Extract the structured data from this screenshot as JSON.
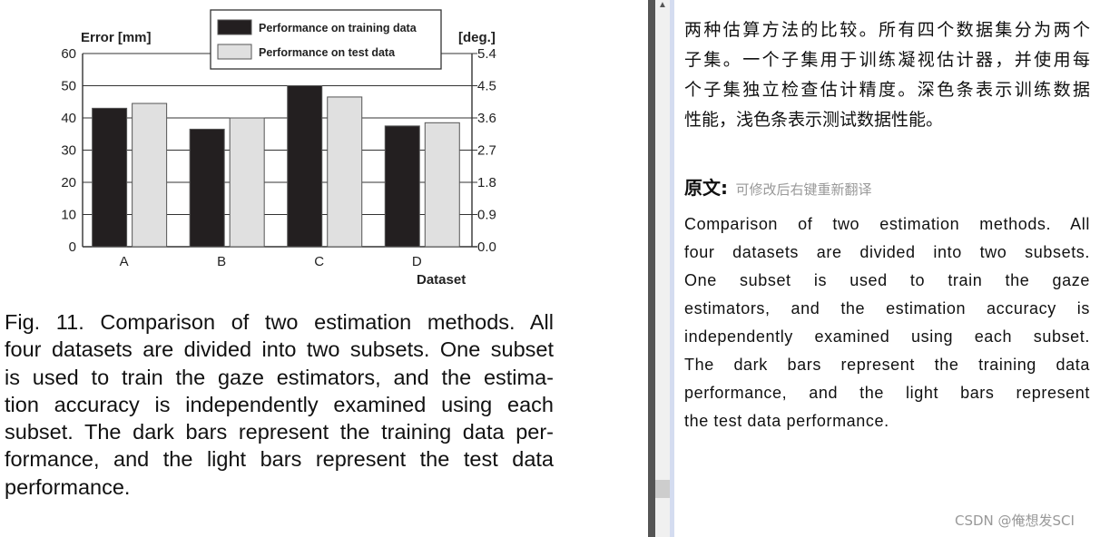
{
  "chart_data": {
    "type": "bar",
    "categories": [
      "A",
      "B",
      "C",
      "D"
    ],
    "series": [
      {
        "name": "Performance on training data",
        "values": [
          43,
          36.5,
          50,
          37.5
        ],
        "color": "#231f20"
      },
      {
        "name": "Performance on test data",
        "values": [
          44.5,
          40,
          46.5,
          38.5
        ],
        "color": "#e0e0e0"
      }
    ],
    "xlabel": "Dataset",
    "ylabel": "Error [mm]",
    "ylabel_right": "[deg.]",
    "ylim": [
      0,
      60
    ],
    "yticks": [
      "0",
      "10",
      "20",
      "30",
      "40",
      "50",
      "60"
    ],
    "ylim_right": [
      0,
      5.4
    ],
    "yticks_right": [
      "0.0",
      "0.9",
      "1.8",
      "2.7",
      "3.6",
      "4.5",
      "5.4"
    ],
    "grid": true,
    "legend_placement": "top-center"
  },
  "caption": {
    "lines": [
      "Fig. 11.  Comparison of two estimation methods. All",
      "four datasets are divided into two subsets. One subset",
      "is used to train the gaze estimators, and the estima-",
      "tion accuracy is independently examined using each",
      "subset. The dark bars represent the training data per-",
      "formance, and the light bars represent the test data",
      "performance."
    ]
  },
  "translation_panel": {
    "translation_lines": [
      "两种估算方法的比较。所有四个数据集分为两个",
      "子集。一个子集用于训练凝视估计器，并使用每",
      "个子集独立检查估计精度。深色条表示训练数据",
      "性能，浅色条表示测试数据性能。"
    ],
    "original_label": "原文:",
    "original_hint": "可修改后右键重新翻译",
    "original_lines": [
      "Comparison of two estimation methods. All",
      "four datasets are divided into two subsets.",
      "One subset is used to train the gaze",
      "estimators, and the estimation accuracy is",
      "independently examined using each subset.",
      "The dark bars represent the training data",
      "performance, and the light bars represent",
      "the test data performance."
    ]
  },
  "watermark": "CSDN @俺想发SCI",
  "scrollbar": {
    "up_icon": "chevron-up-icon"
  }
}
